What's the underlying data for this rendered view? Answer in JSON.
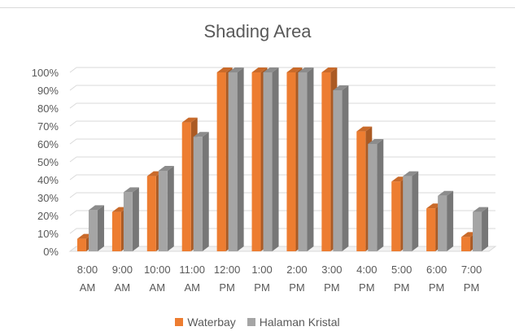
{
  "chart_data": {
    "type": "bar",
    "title": "Shading Area",
    "categories": [
      [
        "8:00",
        "AM"
      ],
      [
        "9:00",
        "AM"
      ],
      [
        "10:00",
        "AM"
      ],
      [
        "11:00",
        "AM"
      ],
      [
        "12:00",
        "PM"
      ],
      [
        "1:00",
        "PM"
      ],
      [
        "2:00",
        "PM"
      ],
      [
        "3:00",
        "PM"
      ],
      [
        "4:00",
        "PM"
      ],
      [
        "5:00",
        "PM"
      ],
      [
        "6:00",
        "PM"
      ],
      [
        "7:00",
        "PM"
      ]
    ],
    "series": [
      {
        "name": "Waterbay",
        "color": "#ed7d31",
        "values": [
          0.07,
          0.22,
          0.42,
          0.72,
          1.0,
          1.0,
          1.0,
          1.0,
          0.67,
          0.39,
          0.24,
          0.08
        ]
      },
      {
        "name": "Halaman Kristal",
        "color": "#a5a5a5",
        "values": [
          0.23,
          0.33,
          0.45,
          0.64,
          1.0,
          1.0,
          1.0,
          0.9,
          0.6,
          0.42,
          0.31,
          0.22
        ]
      }
    ],
    "yticks": [
      "0%",
      "10%",
      "20%",
      "30%",
      "40%",
      "50%",
      "60%",
      "70%",
      "80%",
      "90%",
      "100%"
    ],
    "ylim": [
      0,
      1
    ],
    "grid": true,
    "legend_position": "bottom",
    "style": "3d-clustered-column"
  }
}
